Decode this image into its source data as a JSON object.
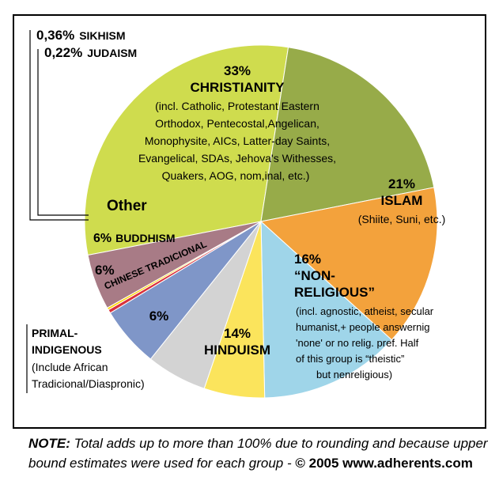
{
  "chart_data": {
    "type": "pie",
    "slices": [
      {
        "key": "christianity",
        "value": 33,
        "color": "#cfdc4e",
        "pct": "33%",
        "name": "CHRISTIANITY",
        "note": [
          "(incl. Catholic, Protestant Eastern",
          "Orthodox, Pentecostal,Angelican,",
          "Monophysite, AICs, Latter-day Saints,",
          "Evangelical, SDAs, Jehova's Withesses,",
          "Quakers, AOG, nom,inal, etc.)"
        ]
      },
      {
        "key": "islam",
        "value": 21,
        "color": "#97ab49",
        "pct": "21%",
        "name": "ISLAM",
        "note": [
          "(Shiite, Suni, etc.)"
        ]
      },
      {
        "key": "nonreligious",
        "value": 16,
        "color": "#f3a23c",
        "pct": "16%",
        "name": "“NON-",
        "name2": "RELIGIOUS”",
        "note": [
          "(incl. agnostic, atheist, secular",
          "humanist,+ people answernig",
          "'none' or no relig. pref. Half",
          "of this group is “theistic”",
          "but nenreligious)"
        ]
      },
      {
        "key": "hinduism",
        "value": 14,
        "color": "#9fd5e9",
        "pct": "14%",
        "name": "HINDUISM"
      },
      {
        "key": "primal",
        "value": 6,
        "color": "#fbe45c",
        "pct": "6%"
      },
      {
        "key": "chinese",
        "value": 6,
        "color": "#d3d3d3",
        "pct": "6%",
        "name": "CHINESE TRADICIONAL"
      },
      {
        "key": "buddhism",
        "value": 6,
        "color": "#7f96c8",
        "pct": "6%",
        "name": "BUDDHISM"
      },
      {
        "key": "sikhism",
        "value": 0.36,
        "color": "#d9323c"
      },
      {
        "key": "judaism",
        "value": 0.22,
        "color": "#ffd700"
      },
      {
        "key": "other",
        "value": 5.5,
        "color": "#a87b86",
        "name": "Other"
      }
    ],
    "callouts": {
      "sikhism": {
        "pct": "0,36%",
        "name": "SIKHISM"
      },
      "judaism": {
        "pct": "0,22%",
        "name": "JUDAISM"
      },
      "primal": {
        "title1": "PRIMAL-",
        "title2": "INDIGENOUS",
        "note1": "(Include African",
        "note2": "Tradicional/Diaspronic)"
      }
    }
  },
  "footer": {
    "note_label": "NOTE:",
    "note_text1": " Total adds up to more than 100% due to rounding and because upper",
    "note_text2": "bound estimates were used for each group - ",
    "copyright": "© 2005 www.adherents.com"
  }
}
